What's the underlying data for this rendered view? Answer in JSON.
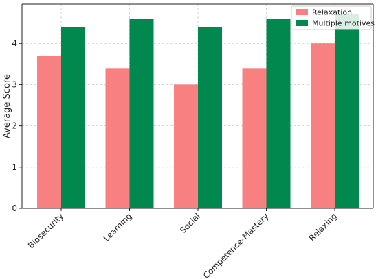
{
  "chart_data": {
    "type": "bar",
    "categories": [
      "Biosecurity",
      "Learning",
      "Social",
      "Competence-Mastery",
      "Relaxing"
    ],
    "series": [
      {
        "name": "Relaxation",
        "values": [
          3.7,
          3.4,
          3.0,
          3.4,
          4.0
        ],
        "color": "#f88080"
      },
      {
        "name": "Multiple motives",
        "values": [
          4.4,
          4.6,
          4.4,
          4.6,
          4.7
        ],
        "color": "#00884f"
      }
    ],
    "ylabel": "Average Score",
    "xlabel": "",
    "ylim": [
      0,
      4.95
    ],
    "yticks": [
      0,
      1,
      2,
      3,
      4
    ],
    "grid": true,
    "legend": "top-right"
  }
}
